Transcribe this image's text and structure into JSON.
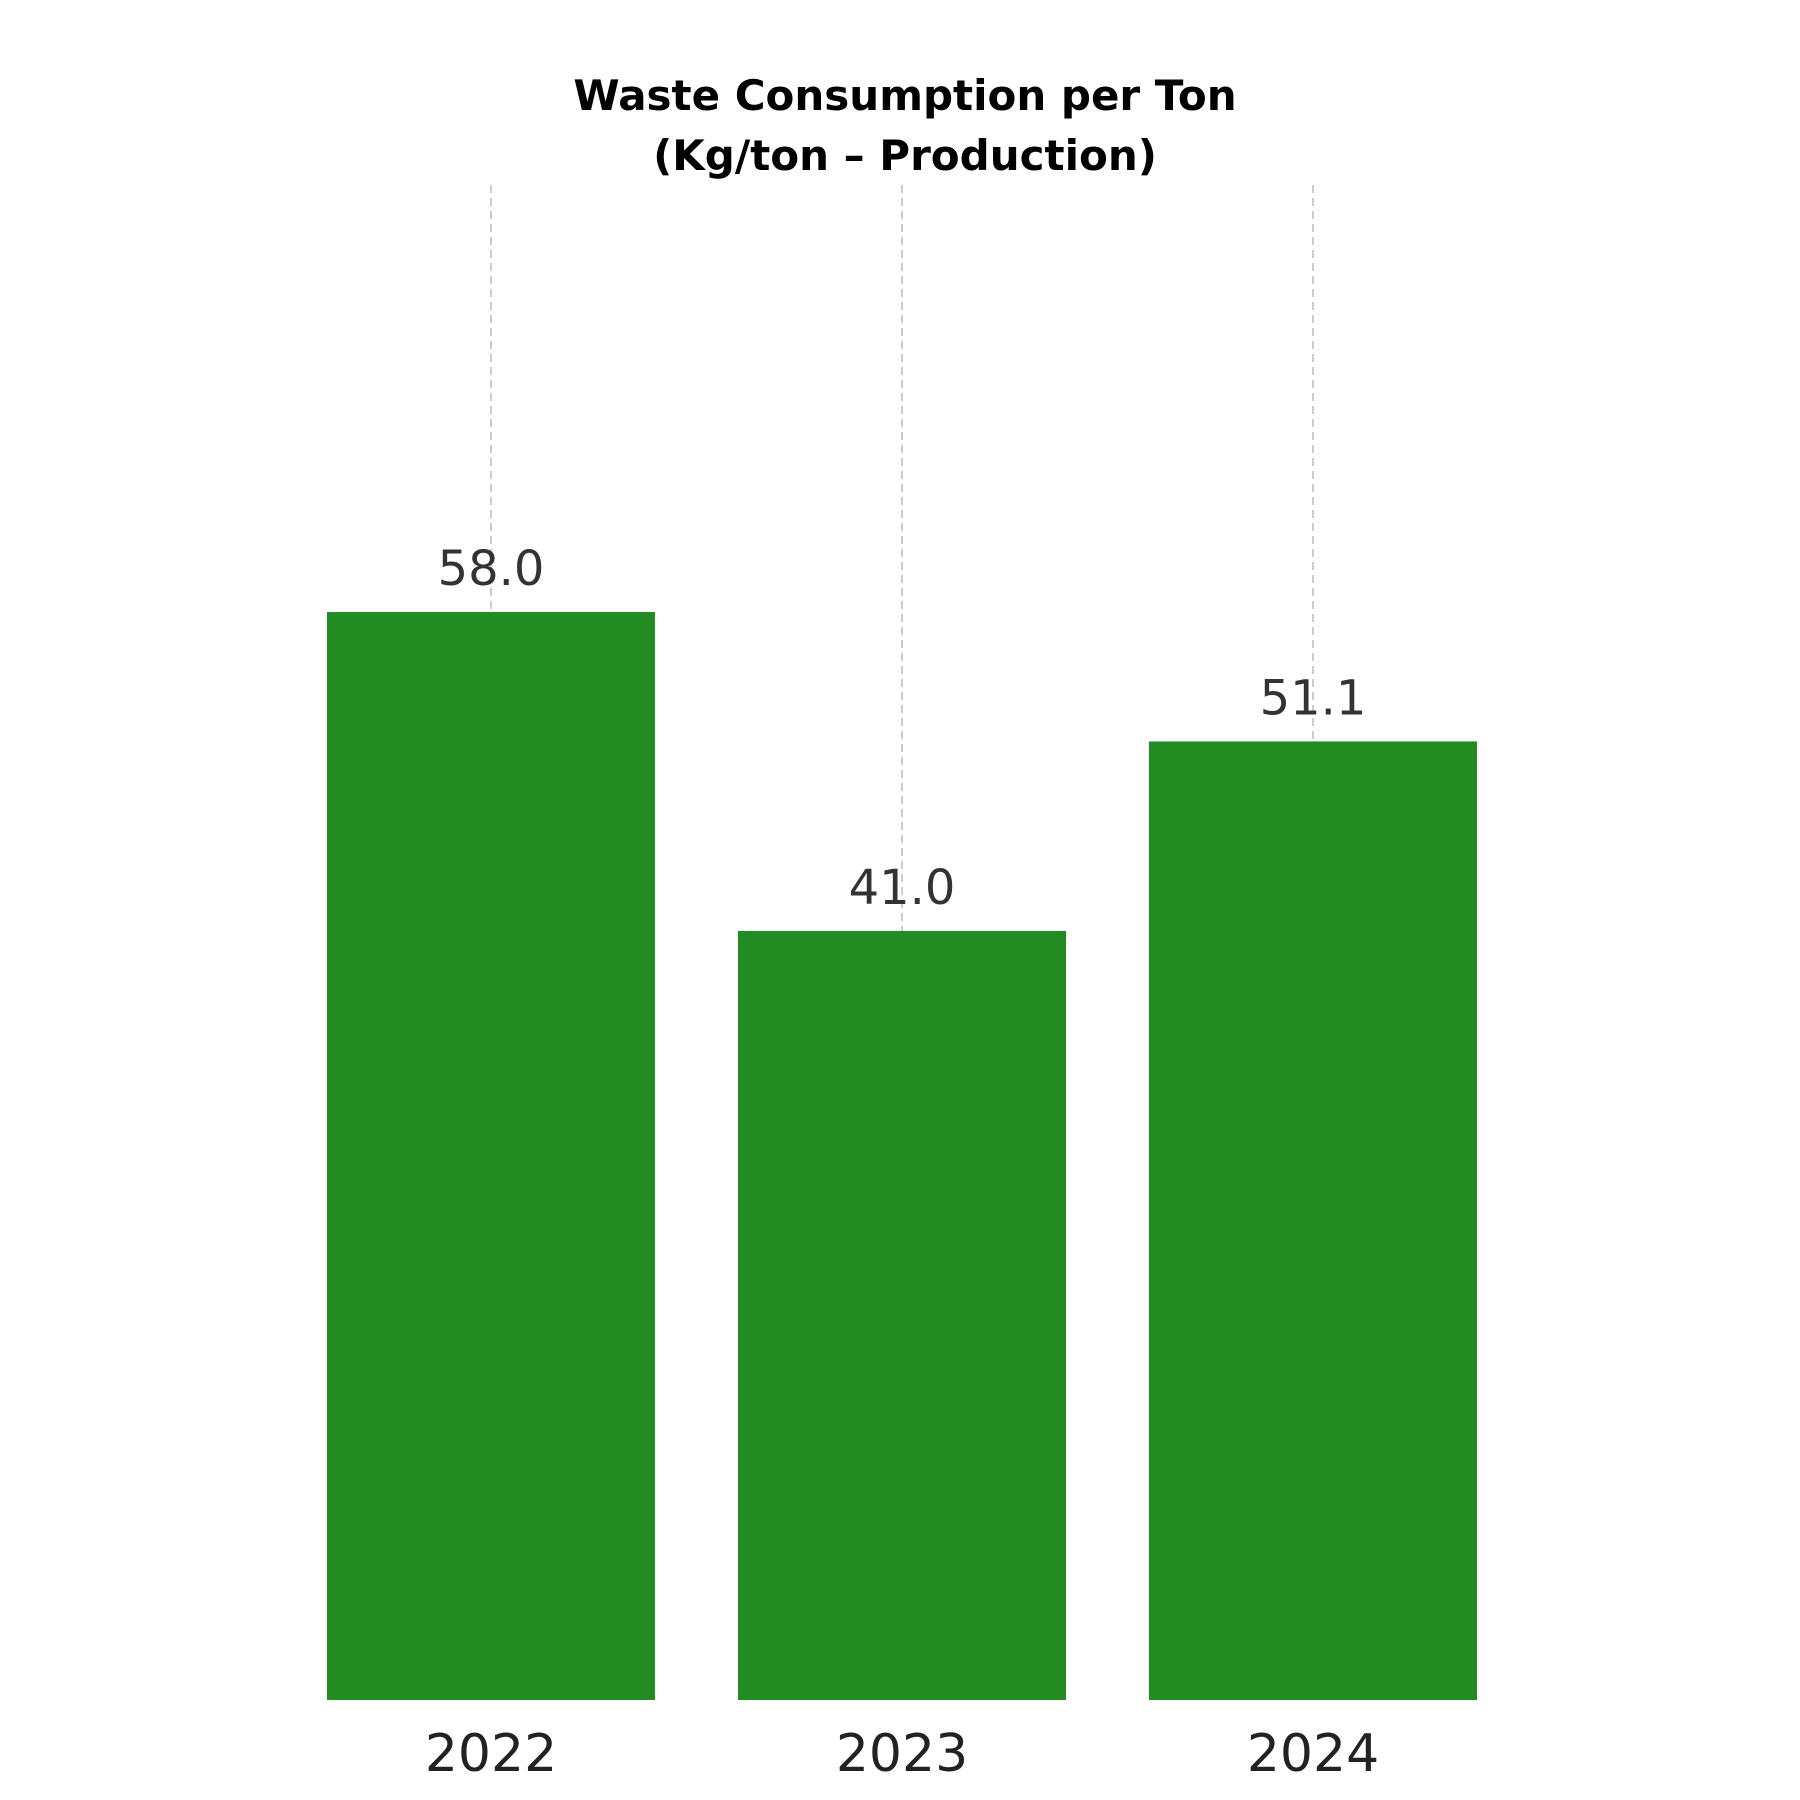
{
  "chart_data": {
    "type": "bar",
    "title": "Waste Consumption per Ton",
    "subtitle": "(Kg/ton – Production)",
    "categories": [
      "2022",
      "2023",
      "2024"
    ],
    "values": [
      58.0,
      41.0,
      51.1
    ],
    "value_labels": [
      "58.0",
      "41.0",
      "51.1"
    ],
    "xlabel": "",
    "ylabel": "",
    "ylim": [
      0,
      80
    ],
    "grid": "vertical dashed",
    "legend": "none",
    "bar_color": "#228B22",
    "grid_color": "#cccccc"
  }
}
